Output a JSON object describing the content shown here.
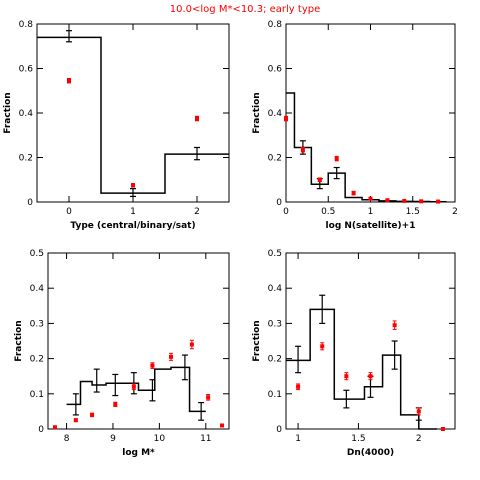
{
  "figure_title": "10.0<log M*<10.3; early type",
  "colors": {
    "title": "#ff0000",
    "model": "#000000",
    "data": "#ff0000"
  },
  "chart_data": [
    {
      "type": "bar",
      "xlabel": "Type (central/binary/sat)",
      "ylabel": "Fraction",
      "xlim": [
        -0.5,
        2.5
      ],
      "ylim": [
        0,
        0.8
      ],
      "xticks": [
        0,
        1,
        2
      ],
      "yticks": [
        0,
        0.2,
        0.4,
        0.6,
        0.8
      ],
      "xtick_labels": [
        "0",
        "1",
        "2"
      ],
      "ytick_labels": [
        "0",
        "0.2",
        "0.4",
        "0.6",
        "0.8"
      ],
      "hist_edges": [
        -0.5,
        0.5,
        1.5,
        2.5
      ],
      "hist_values": [
        0.74,
        0.04,
        0.215
      ],
      "hist_err_x": [
        0,
        1,
        2
      ],
      "hist_err": [
        [
          0.72,
          0.77
        ],
        [
          0.025,
          0.06
        ],
        [
          0.19,
          0.245
        ]
      ],
      "points": {
        "x": [
          0,
          1,
          2
        ],
        "y": [
          0.545,
          0.075,
          0.375
        ],
        "err": [
          0.01,
          0.008,
          0.01
        ]
      }
    },
    {
      "type": "bar",
      "xlabel": "log N(satellite)+1",
      "ylabel": "Fraction",
      "xlim": [
        0,
        2
      ],
      "ylim": [
        0,
        0.8
      ],
      "xticks": [
        0,
        0.5,
        1,
        1.5,
        2
      ],
      "yticks": [
        0,
        0.2,
        0.4,
        0.6,
        0.8
      ],
      "xtick_labels": [
        "0",
        "0.5",
        "1",
        "1.5",
        "2"
      ],
      "ytick_labels": [
        "0",
        "0.2",
        "0.4",
        "0.6",
        "0.8"
      ],
      "hist_edges": [
        0,
        0.1,
        0.3,
        0.5,
        0.7,
        0.9,
        1.1,
        1.3,
        1.5,
        1.7,
        1.9
      ],
      "hist_values": [
        0.49,
        0.245,
        0.08,
        0.13,
        0.02,
        0.01,
        0.005,
        0.003,
        0.002,
        0.001
      ],
      "hist_err_x": [
        0.2,
        0.4,
        0.6
      ],
      "hist_err": [
        [
          0.215,
          0.275
        ],
        [
          0.06,
          0.105
        ],
        [
          0.105,
          0.155
        ]
      ],
      "points": {
        "x": [
          0,
          0.2,
          0.4,
          0.6,
          0.8,
          1.0,
          1.2,
          1.4,
          1.6,
          1.8
        ],
        "y": [
          0.375,
          0.235,
          0.1,
          0.195,
          0.04,
          0.015,
          0.008,
          0.005,
          0.003,
          0.002
        ],
        "err": [
          0.01,
          0.01,
          0.008,
          0.01,
          0.008,
          0.004,
          0.003,
          0.002,
          0.002,
          0.001
        ]
      }
    },
    {
      "type": "bar",
      "xlabel": "log M*",
      "ylabel": "Fraction",
      "xlim": [
        7.6,
        11.5
      ],
      "ylim": [
        0,
        0.5
      ],
      "xticks": [
        8,
        9,
        10,
        11
      ],
      "yticks": [
        0,
        0.1,
        0.2,
        0.3,
        0.4,
        0.5
      ],
      "xtick_labels": [
        "8",
        "9",
        "10",
        "11"
      ],
      "ytick_labels": [
        "0",
        "0.1",
        "0.2",
        "0.3",
        "0.4",
        "0.5"
      ],
      "hist_edges": [
        8.0,
        8.3,
        8.55,
        8.85,
        9.2,
        9.55,
        9.9,
        10.25,
        10.65,
        11.0
      ],
      "hist_values": [
        0.07,
        0.135,
        0.125,
        0.13,
        0.13,
        0.11,
        0.17,
        0.175,
        0.05
      ],
      "hist_err_x": [
        8.2,
        8.65,
        9.05,
        9.45,
        9.85,
        10.55,
        10.9
      ],
      "hist_err": [
        [
          0.04,
          0.1
        ],
        [
          0.105,
          0.17
        ],
        [
          0.095,
          0.155
        ],
        [
          0.1,
          0.16
        ],
        [
          0.08,
          0.14
        ],
        [
          0.14,
          0.21
        ],
        [
          0.025,
          0.075
        ]
      ],
      "points": {
        "x": [
          7.75,
          8.2,
          8.55,
          9.05,
          9.45,
          9.85,
          10.25,
          10.7,
          11.05,
          11.35
        ],
        "y": [
          0.005,
          0.025,
          0.04,
          0.07,
          0.12,
          0.18,
          0.205,
          0.24,
          0.09,
          0.01
        ],
        "err": [
          0.003,
          0.004,
          0.005,
          0.006,
          0.008,
          0.008,
          0.01,
          0.012,
          0.008,
          0.004
        ]
      }
    },
    {
      "type": "bar",
      "xlabel": "Dn(4000)",
      "ylabel": "Fraction",
      "xlim": [
        0.9,
        2.3
      ],
      "ylim": [
        0,
        0.5
      ],
      "xticks": [
        1,
        1.5,
        2
      ],
      "yticks": [
        0,
        0.1,
        0.2,
        0.3,
        0.4,
        0.5
      ],
      "xtick_labels": [
        "1",
        "1.5",
        "2"
      ],
      "ytick_labels": [
        "0",
        "0.1",
        "0.2",
        "0.3",
        "0.4",
        "0.5"
      ],
      "hist_edges": [
        0.9,
        1.1,
        1.3,
        1.45,
        1.55,
        1.7,
        1.85,
        2.0,
        2.15
      ],
      "hist_values": [
        0.195,
        0.34,
        0.085,
        0.085,
        0.12,
        0.21,
        0.04,
        0.0
      ],
      "hist_err_x": [
        1.0,
        1.2,
        1.4,
        1.6,
        1.8,
        2.0
      ],
      "hist_err": [
        [
          0.16,
          0.235
        ],
        [
          0.3,
          0.38
        ],
        [
          0.06,
          0.11
        ],
        [
          0.09,
          0.15
        ],
        [
          0.17,
          0.25
        ],
        [
          0.025,
          0.06
        ]
      ],
      "points": {
        "x": [
          1.0,
          1.2,
          1.4,
          1.6,
          1.8,
          2.0,
          2.2
        ],
        "y": [
          0.12,
          0.235,
          0.15,
          0.15,
          0.295,
          0.05,
          0.0
        ],
        "err": [
          0.008,
          0.01,
          0.01,
          0.01,
          0.012,
          0.01,
          0.0
        ]
      }
    }
  ]
}
